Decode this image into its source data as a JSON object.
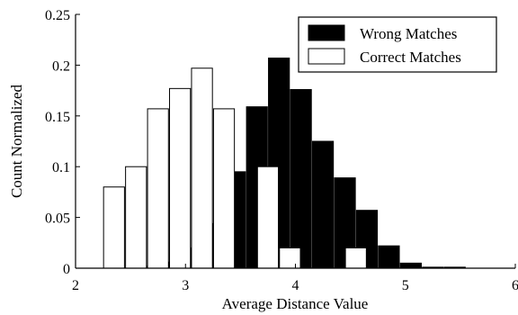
{
  "chart_data": {
    "type": "bar",
    "xlabel": "Average Distance Value",
    "ylabel": "Count Normalized",
    "xlim": [
      2,
      6
    ],
    "ylim": [
      0,
      0.25
    ],
    "xticks": [
      2,
      3,
      4,
      5,
      6
    ],
    "yticks": [
      0,
      0.05,
      0.1,
      0.15,
      0.2,
      0.25
    ],
    "xtick_labels": [
      "2",
      "3",
      "4",
      "5",
      "6"
    ],
    "ytick_labels": [
      "0",
      "0.05",
      "0.1",
      "0.15",
      "0.2",
      "0.25"
    ],
    "bin_width": 0.2,
    "grid": false,
    "legend_position": "top-right",
    "series": [
      {
        "name": "Wrong Matches",
        "fill": "#000000",
        "x": [
          2.45,
          2.65,
          2.85,
          3.05,
          3.25,
          3.45,
          3.65,
          3.85,
          4.05,
          4.25,
          4.45,
          4.65,
          4.85,
          5.05,
          5.25,
          5.45
        ],
        "values": [
          0.0,
          0.002,
          0.006,
          0.02,
          0.044,
          0.095,
          0.159,
          0.207,
          0.176,
          0.125,
          0.089,
          0.057,
          0.022,
          0.005,
          0.001,
          0.001
        ]
      },
      {
        "name": "Correct Matches",
        "fill": "#ffffff",
        "x": [
          2.35,
          2.55,
          2.75,
          2.95,
          3.15,
          3.35,
          3.55,
          3.75,
          3.95,
          4.15,
          4.35,
          4.55,
          4.75,
          4.95,
          5.15,
          5.35
        ],
        "values": [
          0.08,
          0.1,
          0.157,
          0.177,
          0.197,
          0.157,
          0.0,
          0.1,
          0.02,
          0.0,
          0.0,
          0.02,
          0.0,
          0.0,
          0.0,
          0.0
        ]
      }
    ]
  }
}
